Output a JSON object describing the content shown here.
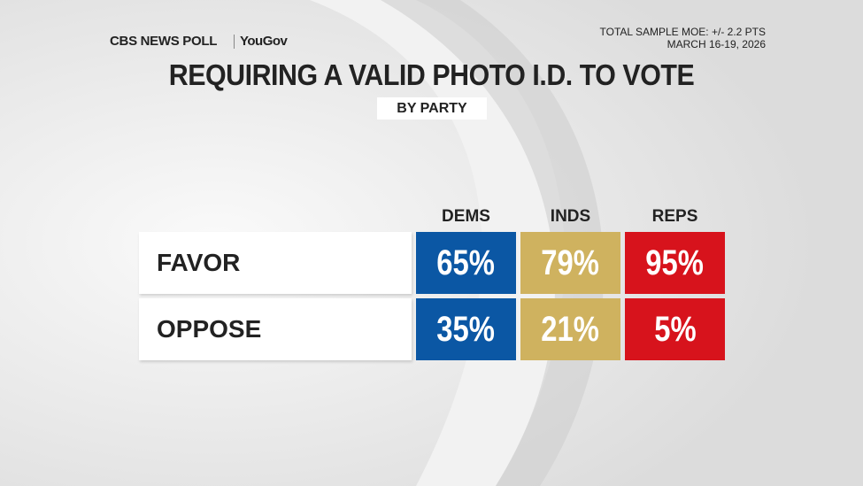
{
  "header": {
    "brand": "CBS NEWS POLL",
    "partner": "YouGov",
    "moe": "TOTAL SAMPLE MOE: +/- 2.2 PTS",
    "dates": "MARCH 16-19, 2026",
    "title": "REQUIRING A VALID PHOTO I.D. TO VOTE",
    "subtitle": "BY PARTY"
  },
  "table": {
    "columns": [
      "DEMS",
      "INDS",
      "REPS"
    ],
    "column_colors": [
      "#0b57a4",
      "#cfb25f",
      "#d7131c"
    ],
    "rows": [
      {
        "label": "FAVOR",
        "values": [
          "65%",
          "79%",
          "95%"
        ]
      },
      {
        "label": "OPPOSE",
        "values": [
          "35%",
          "21%",
          "5%"
        ]
      }
    ]
  }
}
